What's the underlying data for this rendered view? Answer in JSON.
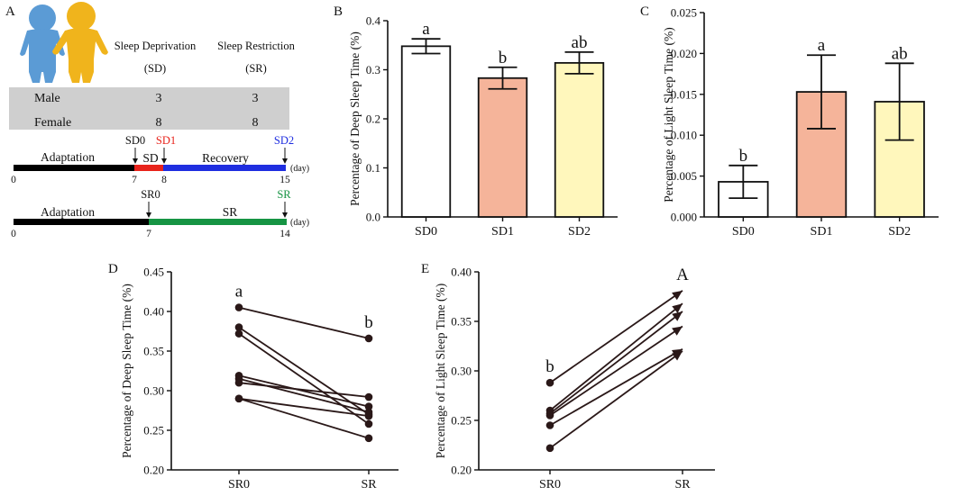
{
  "panel_labels": {
    "A": "A",
    "B": "B",
    "C": "C",
    "D": "D",
    "E": "E"
  },
  "colors": {
    "male_figure": "#5b9bd5",
    "female_figure": "#f0b41c",
    "table_bg": "#cfcfcf",
    "adaptation": "#000000",
    "sd": "#e8231b",
    "recovery": "#1f2ee0",
    "sr": "#169443",
    "sd1_label": "#e8231b",
    "sd2_label": "#1f2ee0",
    "sr_label": "#169443",
    "bar_sd0": "#ffffff",
    "bar_sd1": "#f5b49a",
    "bar_sd2": "#fff7bc"
  },
  "panel_a": {
    "table": {
      "col_headers": [
        "Sleep Deprivation",
        "Sleep Restriction"
      ],
      "col_abbrevs": [
        "(SD)",
        "(SR)"
      ],
      "rows": [
        {
          "label": "Male",
          "sd": "3",
          "sr": "3"
        },
        {
          "label": "Female",
          "sd": "8",
          "sr": "8"
        }
      ]
    },
    "sd_timeline": {
      "adaptation_label": "Adaptation",
      "sd_label": "SD",
      "recovery_label": "Recovery",
      "markers": [
        "SD0",
        "SD1",
        "SD2"
      ],
      "ticks": [
        "0",
        "7",
        "8",
        "15"
      ],
      "unit": "(day)",
      "days": {
        "start": 0,
        "sd_start": 7,
        "sd_end": 8,
        "end": 15
      }
    },
    "sr_timeline": {
      "adaptation_label": "Adaptation",
      "sr_label": "SR",
      "markers": [
        "SR0",
        "SR"
      ],
      "ticks": [
        "0",
        "7",
        "14"
      ],
      "unit": "(day)",
      "days": {
        "start": 0,
        "sr_start": 7,
        "end": 14
      }
    }
  },
  "chart_data": [
    {
      "id": "B",
      "type": "bar",
      "title": "",
      "ylabel": "Percentage of Deep Sleep Time (%)",
      "categories": [
        "SD0",
        "SD1",
        "SD2"
      ],
      "values": [
        0.348,
        0.283,
        0.314
      ],
      "errors": [
        0.015,
        0.022,
        0.022
      ],
      "significance": [
        "a",
        "b",
        "ab"
      ],
      "ylim": [
        0,
        0.4
      ],
      "yticks": [
        "0.0",
        "0.1",
        "0.2",
        "0.3",
        "0.4"
      ]
    },
    {
      "id": "C",
      "type": "bar",
      "title": "",
      "ylabel": "Percentage of Light Sleep Time (%)",
      "categories": [
        "SD0",
        "SD1",
        "SD2"
      ],
      "values": [
        0.0043,
        0.0153,
        0.0141
      ],
      "errors": [
        0.002,
        0.0045,
        0.0047
      ],
      "significance": [
        "b",
        "a",
        "ab"
      ],
      "ylim": [
        0,
        0.025
      ],
      "yticks": [
        "0.000",
        "0.005",
        "0.010",
        "0.015",
        "0.020",
        "0.025"
      ]
    },
    {
      "id": "D",
      "type": "line",
      "title": "",
      "ylabel": "Percentage of Deep Sleep Time (%)",
      "categories": [
        "SR0",
        "SR"
      ],
      "series": [
        {
          "name": "1",
          "values": [
            0.405,
            0.366
          ]
        },
        {
          "name": "2",
          "values": [
            0.38,
            0.27
          ]
        },
        {
          "name": "3",
          "values": [
            0.372,
            0.258
          ]
        },
        {
          "name": "4",
          "values": [
            0.319,
            0.28
          ]
        },
        {
          "name": "5",
          "values": [
            0.315,
            0.273
          ]
        },
        {
          "name": "6",
          "values": [
            0.31,
            0.292
          ]
        },
        {
          "name": "7",
          "values": [
            0.29,
            0.268
          ]
        },
        {
          "name": "8",
          "values": [
            0.29,
            0.24
          ]
        }
      ],
      "significance": [
        "a",
        "b"
      ],
      "ylim": [
        0.2,
        0.45
      ],
      "yticks": [
        "0.20",
        "0.25",
        "0.30",
        "0.35",
        "0.40",
        "0.45"
      ]
    },
    {
      "id": "E",
      "type": "line",
      "title": "",
      "ylabel": "Percentage of Light Sleep Time (%)",
      "categories": [
        "SR0",
        "SR"
      ],
      "series": [
        {
          "name": "1",
          "values": [
            0.288,
            0.381
          ]
        },
        {
          "name": "2",
          "values": [
            0.26,
            0.368
          ]
        },
        {
          "name": "3",
          "values": [
            0.257,
            0.36
          ]
        },
        {
          "name": "4",
          "values": [
            0.255,
            0.345
          ]
        },
        {
          "name": "5",
          "values": [
            0.245,
            0.322
          ]
        },
        {
          "name": "6",
          "values": [
            0.222,
            0.32
          ]
        }
      ],
      "significance": [
        "b",
        "A"
      ],
      "ylim": [
        0.2,
        0.4
      ],
      "yticks": [
        "0.20",
        "0.25",
        "0.30",
        "0.35",
        "0.40"
      ]
    }
  ]
}
